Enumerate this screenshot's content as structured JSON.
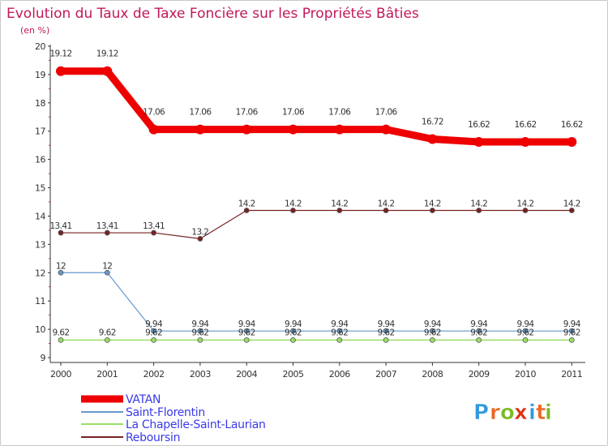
{
  "chart_data": {
    "type": "line",
    "title": "Evolution du Taux de Taxe Foncière sur les Propriétés Bâties",
    "unit_label": "(en %)",
    "xlabel": "",
    "ylabel": "(en %)",
    "ylim": [
      9,
      20
    ],
    "yticks": [
      "9",
      "10",
      "11",
      "12",
      "13",
      "14",
      "15",
      "16",
      "17",
      "18",
      "19",
      "20"
    ],
    "categories": [
      "2000",
      "2001",
      "2002",
      "2003",
      "2004",
      "2005",
      "2006",
      "2007",
      "2008",
      "2009",
      "2010",
      "2011"
    ],
    "series": [
      {
        "name": "VATAN",
        "color": "#ee0000",
        "values": [
          19.12,
          19.12,
          17.06,
          17.06,
          17.06,
          17.06,
          17.06,
          17.06,
          16.72,
          16.62,
          16.62,
          16.62
        ],
        "labels": [
          "19.12",
          "19.12",
          "17.06",
          "17.06",
          "17.06",
          "17.06",
          "17.06",
          "17.06",
          "16.72",
          "16.62",
          "16.62",
          "16.62"
        ]
      },
      {
        "name": "Saint-Florentin",
        "color": "#6699cc",
        "values": [
          12,
          12,
          9.94,
          9.94,
          9.94,
          9.94,
          9.94,
          9.94,
          9.94,
          9.94,
          9.94,
          9.94
        ],
        "labels": [
          "12",
          "12",
          "9.94",
          "9.94",
          "9.94",
          "9.94",
          "9.94",
          "9.94",
          "9.94",
          "9.94",
          "9.94",
          "9.94"
        ]
      },
      {
        "name": "La Chapelle-Saint-Laurian",
        "color": "#99dd66",
        "values": [
          9.62,
          9.62,
          9.62,
          9.62,
          9.62,
          9.62,
          9.62,
          9.62,
          9.62,
          9.62,
          9.62,
          9.62
        ],
        "labels": [
          "9.62",
          "9.62",
          "9.62",
          "9.62",
          "9.62",
          "9.62",
          "9.62",
          "9.62",
          "9.62",
          "9.62",
          "9.62",
          "9.62"
        ]
      },
      {
        "name": "Reboursin",
        "color": "#772222",
        "values": [
          13.41,
          13.41,
          13.41,
          13.2,
          14.2,
          14.2,
          14.2,
          14.2,
          14.2,
          14.2,
          14.2,
          14.2
        ],
        "labels": [
          "13.41",
          "13.41",
          "13.41",
          "13.2",
          "14.2",
          "14.2",
          "14.2",
          "14.2",
          "14.2",
          "14.2",
          "14.2",
          "14.2"
        ]
      }
    ]
  },
  "brand": {
    "letters": [
      "P",
      "r",
      "o",
      "x",
      "i",
      "t",
      "i"
    ],
    "colors": [
      "#3399dd",
      "#ee6622",
      "#77bb22",
      "#dd3311",
      "#3399dd",
      "#ee6622",
      "#77bb22"
    ]
  }
}
